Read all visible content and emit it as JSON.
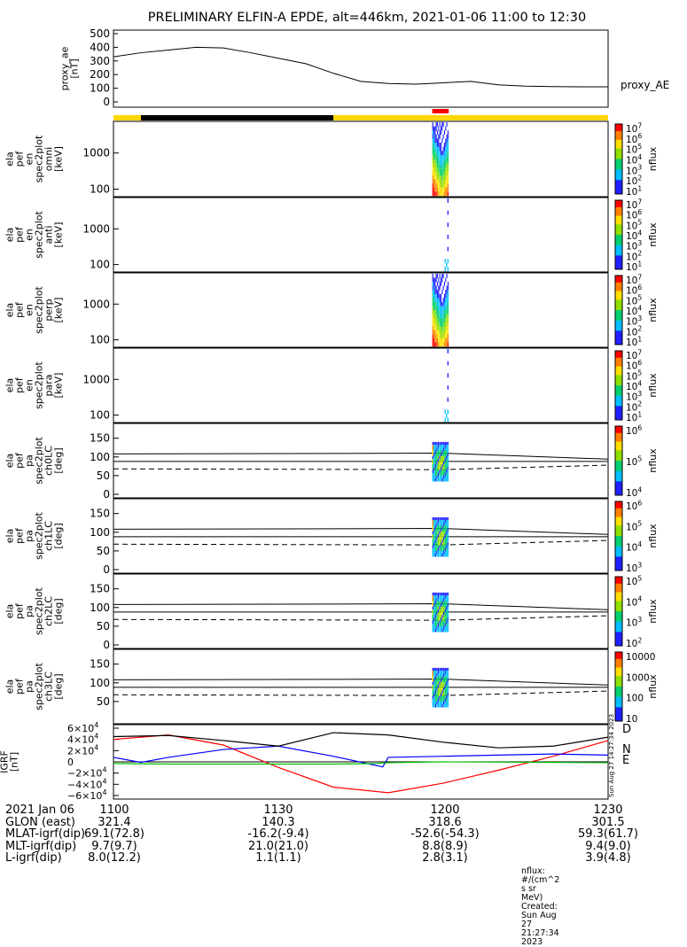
{
  "title": "PRELIMINARY ELFIN-A EPDE, alt=446km, 2021-01-06 11:00 to 12:30",
  "colors": {
    "state_yellow": "#ffd700",
    "state_black": "#000000",
    "science_red": "#ff0000"
  },
  "chart_data": [
    {
      "type": "line",
      "name": "proxy_ae",
      "ylabel_lines": [
        "proxy_ae",
        "[nT]"
      ],
      "right_label": "proxy_AE",
      "yticks": [
        "500",
        "400",
        "300",
        "200",
        "100",
        "0"
      ],
      "ylim": [
        0,
        500
      ],
      "x_unit": "minutes after 11:00",
      "x": [
        0,
        5,
        10,
        15,
        20,
        25,
        30,
        35,
        40,
        45,
        50,
        55,
        60,
        65,
        70,
        75,
        80,
        85,
        90
      ],
      "y": [
        330,
        360,
        380,
        400,
        395,
        360,
        320,
        280,
        210,
        150,
        135,
        130,
        140,
        150,
        125,
        115,
        112,
        110,
        110
      ]
    },
    {
      "type": "heatmap",
      "name": "ela_pef_en_spec2plot_omni",
      "ylabel_lines": [
        "ela",
        "pef",
        "en",
        "spec2plot",
        "omni",
        "[keV]"
      ],
      "yticks": [
        "1000",
        "100"
      ],
      "scale": "log",
      "zlabel": "nflux",
      "zticks": [
        "10^7",
        "10^6",
        "10^5",
        "10^4",
        "10^3",
        "10^2",
        "10^1"
      ],
      "active_interval": [
        "11:58",
        "12:01"
      ]
    },
    {
      "type": "heatmap",
      "name": "ela_pef_en_spec2plot_anti",
      "ylabel_lines": [
        "ela",
        "pef",
        "en",
        "spec2plot",
        "anti",
        "[keV]"
      ],
      "yticks": [
        "1000",
        "100"
      ],
      "scale": "log",
      "zlabel": "nflux",
      "zticks": [
        "10^7",
        "10^6",
        "10^5",
        "10^4",
        "10^3",
        "10^2",
        "10^1"
      ],
      "active_interval": [
        "11:59",
        "12:01"
      ]
    },
    {
      "type": "heatmap",
      "name": "ela_pef_en_spec2plot_perp",
      "ylabel_lines": [
        "ela",
        "pef",
        "en",
        "spec2plot",
        "perp",
        "[keV]"
      ],
      "yticks": [
        "1000",
        "100"
      ],
      "scale": "log",
      "zlabel": "nflux",
      "zticks": [
        "10^7",
        "10^6",
        "10^5",
        "10^4",
        "10^3",
        "10^2",
        "10^1"
      ],
      "active_interval": [
        "11:58",
        "12:01"
      ]
    },
    {
      "type": "heatmap",
      "name": "ela_pef_en_spec2plot_para",
      "ylabel_lines": [
        "ela",
        "pef",
        "en",
        "spec2plot",
        "para",
        "[keV]"
      ],
      "yticks": [
        "1000",
        "100"
      ],
      "scale": "log",
      "zlabel": "nflux",
      "zticks": [
        "10^7",
        "10^6",
        "10^5",
        "10^4",
        "10^3",
        "10^2",
        "10^1"
      ],
      "active_interval": [
        "11:59",
        "12:01"
      ]
    },
    {
      "type": "heatmap",
      "name": "ela_pef_pa_spec2plot_ch0LC",
      "ylabel_lines": [
        "ela",
        "pef",
        "pa",
        "spec2plot",
        "ch0LC",
        "[deg]"
      ],
      "yticks": [
        "150",
        "100",
        "50",
        "0"
      ],
      "ylim": [
        0,
        180
      ],
      "zlabel": "nflux",
      "zticks": [
        "10^6",
        "10^5",
        "10^4"
      ],
      "active_interval": [
        "11:58",
        "12:01"
      ]
    },
    {
      "type": "heatmap",
      "name": "ela_pef_pa_spec2plot_ch1LC",
      "ylabel_lines": [
        "ela",
        "pef",
        "pa",
        "spec2plot",
        "ch1LC",
        "[deg]"
      ],
      "yticks": [
        "150",
        "100",
        "50",
        "0"
      ],
      "ylim": [
        0,
        180
      ],
      "zlabel": "nflux",
      "zticks": [
        "10^6",
        "10^5",
        "10^4",
        "10^3"
      ],
      "active_interval": [
        "11:58",
        "12:01"
      ]
    },
    {
      "type": "heatmap",
      "name": "ela_pef_pa_spec2plot_ch2LC",
      "ylabel_lines": [
        "ela",
        "pef",
        "pa",
        "spec2plot",
        "ch2LC",
        "[deg]"
      ],
      "yticks": [
        "150",
        "100",
        "50",
        "0"
      ],
      "ylim": [
        0,
        180
      ],
      "zlabel": "nflux",
      "zticks": [
        "10^5",
        "10^4",
        "10^3",
        "10^2"
      ],
      "active_interval": [
        "11:58",
        "12:01"
      ]
    },
    {
      "type": "heatmap",
      "name": "ela_pef_pa_spec2plot_ch3LC",
      "ylabel_lines": [
        "ela",
        "pef",
        "pa",
        "spec2plot",
        "ch3LC",
        "[deg]"
      ],
      "yticks": [
        "150",
        "100",
        "50"
      ],
      "ylim": [
        0,
        180
      ],
      "zlabel": "nflux",
      "zticks": [
        "10000",
        "1000",
        "100",
        "10"
      ],
      "active_interval": [
        "11:58",
        "12:01"
      ]
    },
    {
      "type": "line",
      "name": "IGRF",
      "ylabel_lines": [
        "IGRF",
        "[nT]"
      ],
      "yticks": [
        "6×10^4",
        "4×10^4",
        "2×10^4",
        "0",
        "−2×10^4",
        "−4×10^4",
        "−6×10^4"
      ],
      "ylim": [
        -60000,
        60000
      ],
      "x_unit": "minutes after 11:00",
      "series": [
        {
          "name": "D",
          "color": "#ff0000",
          "x": [
            0,
            10,
            20,
            30,
            40,
            50,
            60,
            70,
            80,
            90
          ],
          "y": [
            40000,
            48000,
            30000,
            -10000,
            -45000,
            -55000,
            -38000,
            -15000,
            10000,
            38000
          ]
        },
        {
          "name": "N",
          "color": "#0000ff",
          "x": [
            0,
            5,
            10,
            20,
            30,
            40,
            49,
            50,
            60,
            70,
            80,
            90
          ],
          "y": [
            8000,
            -1000,
            8000,
            22000,
            28000,
            10000,
            -9000,
            8000,
            10000,
            12000,
            14000,
            12000
          ]
        },
        {
          "name": "E",
          "color": "#00c000",
          "x": [
            0,
            10,
            20,
            30,
            40,
            48,
            50,
            60,
            70,
            80,
            90
          ],
          "y": [
            -3000,
            -4000,
            -4000,
            -4000,
            -4000,
            -3000,
            -1500,
            0,
            -500,
            -1000,
            -1500
          ]
        },
        {
          "name": "",
          "color": "#000000",
          "x": [
            0,
            10,
            20,
            30,
            40,
            50,
            60,
            70,
            80,
            90
          ],
          "y": [
            45000,
            47000,
            38000,
            28000,
            52000,
            48000,
            35000,
            25000,
            28000,
            44000
          ]
        }
      ]
    }
  ],
  "side_stamp": "Sun Aug 27 14:27:34 2023",
  "footer": {
    "row_labels": [
      "2021 Jan 06",
      "GLON (east)",
      "MLAT-igrf(dip)",
      "MLT-igrf(dip)",
      "L-igrf(dip)"
    ],
    "columns": [
      {
        "time": "1100",
        "glon": "321.4",
        "mlat": "69.1(72.8)",
        "mlt": "9.7(9.7)",
        "l": "8.0(12.2)"
      },
      {
        "time": "1130",
        "glon": "140.3",
        "mlat": "-16.2(-9.4)",
        "mlt": "21.0(21.0)",
        "l": "1.1(1.1)"
      },
      {
        "time": "1200",
        "glon": "318.6",
        "mlat": "-52.6(-54.3)",
        "mlt": "8.8(8.9)",
        "l": "2.8(3.1)"
      },
      {
        "time": "1230",
        "glon": "301.5",
        "mlat": "59.3(61.7)",
        "mlt": "9.4(9.0)",
        "l": "3.9(4.8)"
      }
    ],
    "nflux_note": "nflux: #/(cm^2 s sr MeV)",
    "created": "Created: Sun Aug 27 21:27:34 2023"
  }
}
